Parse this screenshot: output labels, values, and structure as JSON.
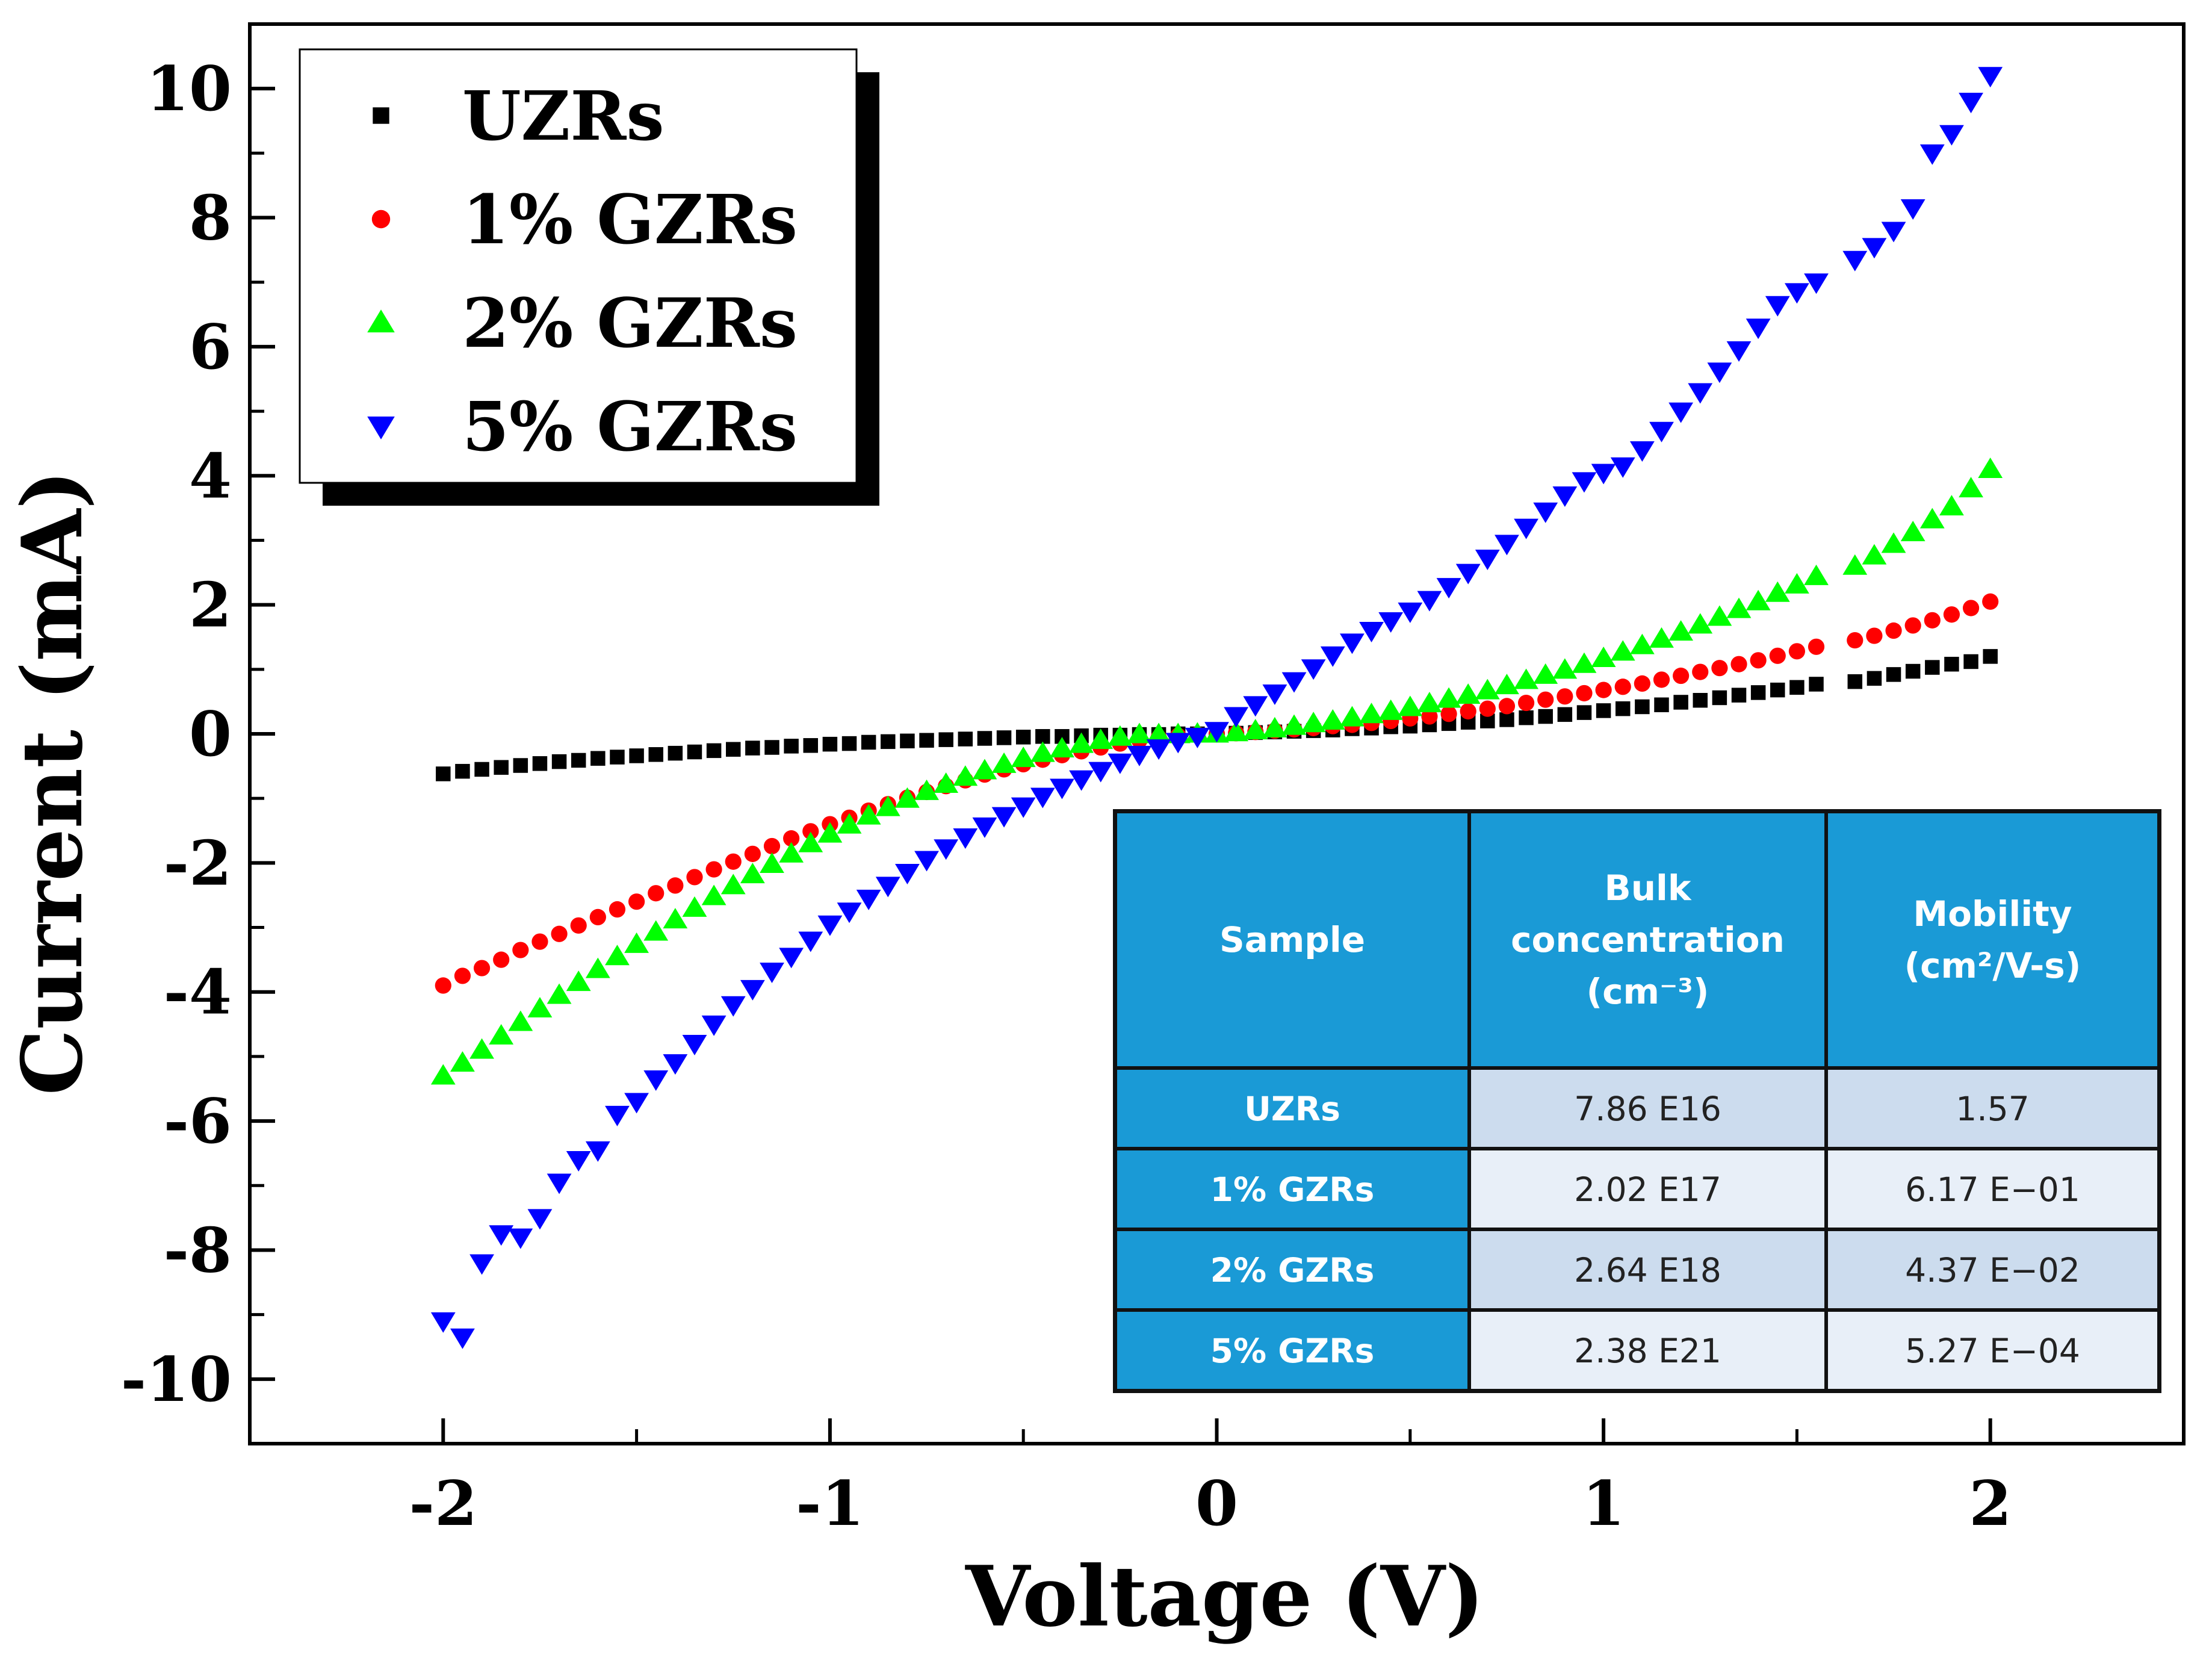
{
  "chart_data": {
    "type": "scatter",
    "xlabel": "Voltage (V)",
    "ylabel": "Current (mA)",
    "xlim": [
      -2.5,
      2.5
    ],
    "ylim": [
      -11,
      11
    ],
    "x_ticks": [
      -2,
      -1,
      0,
      1,
      2
    ],
    "y_ticks": [
      -10,
      -8,
      -6,
      -4,
      -2,
      0,
      2,
      4,
      6,
      8,
      10
    ],
    "x_tick_labels": [
      "-2",
      "-1",
      "0",
      "1",
      "2"
    ],
    "y_tick_labels": [
      "-10",
      "-8",
      "-6",
      "-4",
      "-2",
      "0",
      "2",
      "4",
      "6",
      "8",
      "10"
    ],
    "legend_position": "top-left",
    "grid": false,
    "series": [
      {
        "name": "UZRs",
        "marker": "square",
        "color": "#000000",
        "x": [
          -2,
          -1.95,
          -1.9,
          -1.85,
          -1.8,
          -1.75,
          -1.7,
          -1.65,
          -1.6,
          -1.55,
          -1.5,
          -1.45,
          -1.4,
          -1.35,
          -1.3,
          -1.25,
          -1.2,
          -1.15,
          -1.1,
          -1.05,
          -1,
          -0.95,
          -0.9,
          -0.85,
          -0.8,
          -0.75,
          -0.7,
          -0.65,
          -0.6,
          -0.55,
          -0.5,
          -0.45,
          -0.4,
          -0.35,
          -0.3,
          -0.25,
          -0.2,
          -0.15,
          -0.1,
          -0.05,
          0,
          0.05,
          0.1,
          0.15,
          0.2,
          0.25,
          0.3,
          0.35,
          0.4,
          0.45,
          0.5,
          0.55,
          0.6,
          0.65,
          0.7,
          0.75,
          0.8,
          0.85,
          0.9,
          0.95,
          1,
          1.05,
          1.1,
          1.15,
          1.2,
          1.25,
          1.3,
          1.35,
          1.4,
          1.45,
          1.5,
          1.55,
          1.65,
          1.7,
          1.75,
          1.8,
          1.85,
          1.9,
          1.95,
          2
        ],
        "y": [
          -0.62,
          -0.58,
          -0.55,
          -0.52,
          -0.49,
          -0.46,
          -0.43,
          -0.41,
          -0.38,
          -0.36,
          -0.34,
          -0.32,
          -0.3,
          -0.28,
          -0.26,
          -0.24,
          -0.22,
          -0.21,
          -0.19,
          -0.18,
          -0.16,
          -0.15,
          -0.13,
          -0.12,
          -0.11,
          -0.1,
          -0.09,
          -0.08,
          -0.07,
          -0.06,
          -0.05,
          -0.04,
          -0.04,
          -0.03,
          -0.02,
          -0.02,
          -0.01,
          -0.01,
          0,
          0,
          0,
          0.01,
          0.02,
          0.03,
          0.04,
          0.05,
          0.06,
          0.08,
          0.09,
          0.11,
          0.12,
          0.14,
          0.16,
          0.18,
          0.2,
          0.22,
          0.25,
          0.27,
          0.3,
          0.33,
          0.36,
          0.39,
          0.42,
          0.45,
          0.49,
          0.52,
          0.56,
          0.6,
          0.64,
          0.68,
          0.72,
          0.77,
          0.81,
          0.86,
          0.92,
          0.97,
          1.03,
          1.08,
          1.12,
          1.2
        ]
      },
      {
        "name": "1% GZRs",
        "marker": "circle",
        "color": "#ff0000",
        "x": [
          -2,
          -1.95,
          -1.9,
          -1.85,
          -1.8,
          -1.75,
          -1.7,
          -1.65,
          -1.6,
          -1.55,
          -1.5,
          -1.45,
          -1.4,
          -1.35,
          -1.3,
          -1.25,
          -1.2,
          -1.15,
          -1.1,
          -1.05,
          -1,
          -0.95,
          -0.9,
          -0.85,
          -0.8,
          -0.75,
          -0.7,
          -0.65,
          -0.6,
          -0.55,
          -0.5,
          -0.45,
          -0.4,
          -0.35,
          -0.3,
          -0.25,
          -0.2,
          -0.15,
          -0.1,
          -0.05,
          0,
          0.05,
          0.1,
          0.15,
          0.2,
          0.25,
          0.3,
          0.35,
          0.4,
          0.45,
          0.5,
          0.55,
          0.6,
          0.65,
          0.7,
          0.75,
          0.8,
          0.85,
          0.9,
          0.95,
          1,
          1.05,
          1.1,
          1.15,
          1.2,
          1.25,
          1.3,
          1.35,
          1.4,
          1.45,
          1.5,
          1.55,
          1.65,
          1.7,
          1.75,
          1.8,
          1.85,
          1.9,
          1.95,
          2
        ],
        "y": [
          -3.9,
          -3.75,
          -3.63,
          -3.5,
          -3.35,
          -3.22,
          -3.1,
          -2.97,
          -2.84,
          -2.72,
          -2.6,
          -2.47,
          -2.35,
          -2.22,
          -2.1,
          -1.98,
          -1.86,
          -1.74,
          -1.62,
          -1.51,
          -1.4,
          -1.3,
          -1.19,
          -1.09,
          -0.99,
          -0.9,
          -0.81,
          -0.72,
          -0.63,
          -0.55,
          -0.47,
          -0.4,
          -0.33,
          -0.27,
          -0.21,
          -0.15,
          -0.1,
          -0.06,
          -0.03,
          -0.01,
          0,
          0.01,
          0.03,
          0.05,
          0.07,
          0.09,
          0.12,
          0.14,
          0.17,
          0.2,
          0.24,
          0.27,
          0.31,
          0.35,
          0.39,
          0.43,
          0.48,
          0.53,
          0.58,
          0.63,
          0.68,
          0.73,
          0.78,
          0.84,
          0.9,
          0.96,
          1.02,
          1.08,
          1.14,
          1.21,
          1.28,
          1.35,
          1.45,
          1.52,
          1.6,
          1.68,
          1.76,
          1.85,
          1.95,
          2.05
        ]
      },
      {
        "name": "2% GZRs",
        "marker": "triangle-up",
        "color": "#00ff00",
        "x": [
          -2,
          -1.95,
          -1.9,
          -1.85,
          -1.8,
          -1.75,
          -1.7,
          -1.65,
          -1.6,
          -1.55,
          -1.5,
          -1.45,
          -1.4,
          -1.35,
          -1.3,
          -1.25,
          -1.2,
          -1.15,
          -1.1,
          -1.05,
          -1,
          -0.95,
          -0.9,
          -0.85,
          -0.8,
          -0.75,
          -0.7,
          -0.65,
          -0.6,
          -0.55,
          -0.5,
          -0.45,
          -0.4,
          -0.35,
          -0.3,
          -0.25,
          -0.2,
          -0.15,
          -0.1,
          -0.05,
          0,
          0.05,
          0.1,
          0.15,
          0.2,
          0.25,
          0.3,
          0.35,
          0.4,
          0.45,
          0.5,
          0.55,
          0.6,
          0.65,
          0.7,
          0.75,
          0.8,
          0.85,
          0.9,
          0.95,
          1,
          1.05,
          1.1,
          1.15,
          1.2,
          1.25,
          1.3,
          1.35,
          1.4,
          1.45,
          1.5,
          1.55,
          1.65,
          1.7,
          1.75,
          1.8,
          1.85,
          1.9,
          1.95,
          2
        ],
        "y": [
          -5.3,
          -5.1,
          -4.9,
          -4.68,
          -4.47,
          -4.26,
          -4.05,
          -3.85,
          -3.65,
          -3.45,
          -3.26,
          -3.07,
          -2.88,
          -2.7,
          -2.52,
          -2.35,
          -2.18,
          -2.02,
          -1.86,
          -1.7,
          -1.55,
          -1.41,
          -1.27,
          -1.14,
          -1.01,
          -0.89,
          -0.78,
          -0.67,
          -0.57,
          -0.47,
          -0.38,
          -0.3,
          -0.23,
          -0.16,
          -0.1,
          -0.05,
          -0.01,
          -0.01,
          -0.01,
          0,
          0,
          0.02,
          0.05,
          0.08,
          0.12,
          0.16,
          0.2,
          0.25,
          0.3,
          0.35,
          0.41,
          0.47,
          0.54,
          0.6,
          0.67,
          0.75,
          0.83,
          0.91,
          0.99,
          1.08,
          1.17,
          1.27,
          1.37,
          1.47,
          1.58,
          1.69,
          1.81,
          1.93,
          2.05,
          2.18,
          2.31,
          2.44,
          2.6,
          2.76,
          2.94,
          3.12,
          3.32,
          3.52,
          3.8,
          4.1
        ]
      },
      {
        "name": "5% GZRs",
        "marker": "triangle-down",
        "color": "#0000ff",
        "x": [
          -2,
          -1.95,
          -1.9,
          -1.85,
          -1.8,
          -1.75,
          -1.7,
          -1.65,
          -1.6,
          -1.55,
          -1.5,
          -1.45,
          -1.4,
          -1.35,
          -1.3,
          -1.25,
          -1.2,
          -1.15,
          -1.1,
          -1.05,
          -1,
          -0.95,
          -0.9,
          -0.85,
          -0.8,
          -0.75,
          -0.7,
          -0.65,
          -0.6,
          -0.55,
          -0.5,
          -0.45,
          -0.4,
          -0.35,
          -0.3,
          -0.25,
          -0.2,
          -0.15,
          -0.1,
          -0.05,
          0,
          0.05,
          0.1,
          0.15,
          0.2,
          0.25,
          0.3,
          0.35,
          0.4,
          0.45,
          0.5,
          0.55,
          0.6,
          0.65,
          0.7,
          0.75,
          0.8,
          0.85,
          0.9,
          0.95,
          1,
          1.05,
          1.1,
          1.15,
          1.2,
          1.25,
          1.3,
          1.35,
          1.4,
          1.45,
          1.5,
          1.55,
          1.65,
          1.7,
          1.75,
          1.8,
          1.85,
          1.9,
          1.95,
          2
        ],
        "y": [
          -9.1,
          -9.35,
          -8.2,
          -7.75,
          -7.8,
          -7.5,
          -6.95,
          -6.6,
          -6.45,
          -5.9,
          -5.7,
          -5.35,
          -5.1,
          -4.8,
          -4.5,
          -4.2,
          -3.95,
          -3.68,
          -3.45,
          -3.2,
          -2.95,
          -2.75,
          -2.55,
          -2.35,
          -2.15,
          -1.95,
          -1.77,
          -1.6,
          -1.43,
          -1.27,
          -1.12,
          -0.97,
          -0.83,
          -0.7,
          -0.57,
          -0.44,
          -0.32,
          -0.22,
          -0.12,
          -0.04,
          0.05,
          0.28,
          0.45,
          0.63,
          0.82,
          1.02,
          1.22,
          1.42,
          1.6,
          1.75,
          1.9,
          2.08,
          2.28,
          2.5,
          2.72,
          2.95,
          3.2,
          3.45,
          3.7,
          3.92,
          4.05,
          4.15,
          4.4,
          4.7,
          5.0,
          5.3,
          5.62,
          5.95,
          6.3,
          6.65,
          6.85,
          7.0,
          7.35,
          7.55,
          7.8,
          8.15,
          9.0,
          9.3,
          9.8,
          10.2
        ]
      }
    ],
    "inset_table": {
      "headers": [
        [
          "Sample"
        ],
        [
          "Bulk",
          "concentration",
          "(cm⁻³)"
        ],
        [
          "Mobility",
          "(cm²/V-s)"
        ]
      ],
      "rows": [
        [
          "UZRs",
          "7.86 E16",
          "1.57"
        ],
        [
          "1% GZRs",
          "2.02 E17",
          "6.17 E−01"
        ],
        [
          "2% GZRs",
          "2.64 E18",
          "4.37 E−02"
        ],
        [
          "5% GZRs",
          "2.38 E21",
          "5.27 E−04"
        ]
      ],
      "header_color": "#1a9ad6",
      "rowhead_color": "#1a9ad6",
      "cell_colors": [
        "#ccdcee",
        "#e8eff8"
      ]
    }
  }
}
